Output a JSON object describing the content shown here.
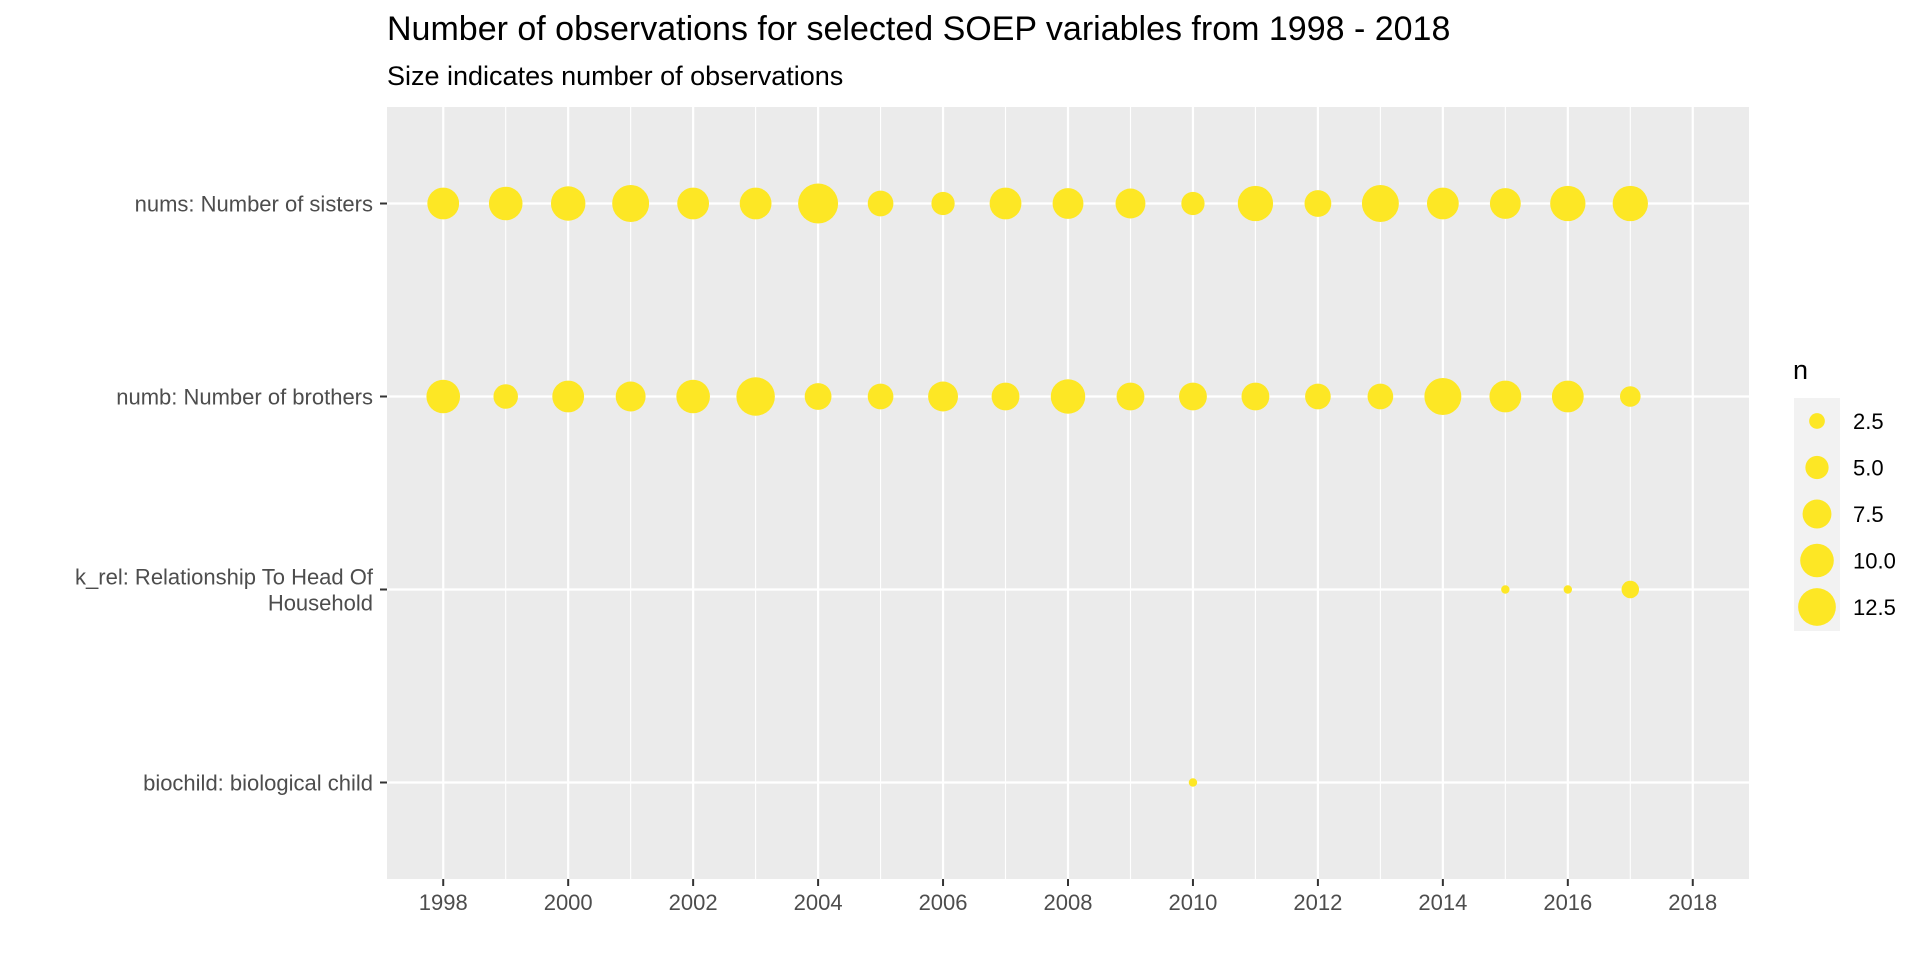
{
  "chart_data": {
    "type": "scatter",
    "title": "Number of observations for selected SOEP variables from 1998 - 2018",
    "subtitle": "Size indicates number of observations",
    "xlabel": "",
    "ylabel": "",
    "xlim": [
      1997.1,
      2018.9
    ],
    "x_ticks": [
      1998,
      2000,
      2002,
      2004,
      2006,
      2008,
      2010,
      2012,
      2014,
      2016,
      2018
    ],
    "x_tick_labels": [
      "1998",
      "2000",
      "2002",
      "2004",
      "2006",
      "2008",
      "2010",
      "2012",
      "2014",
      "2016",
      "2018"
    ],
    "categories": [
      "biochild: biological child",
      "k_rel: Relationship To Head Of Household",
      "numb: Number of brothers",
      "nums: Number of sisters"
    ],
    "category_label_lines": [
      [
        "biochild: biological child"
      ],
      [
        "k_rel: Relationship To Head Of",
        "Household"
      ],
      [
        "numb: Number of brothers"
      ],
      [
        "nums: Number of sisters"
      ]
    ],
    "point_color": "#FDE725",
    "panel_background": "#EBEBEB",
    "grid": true,
    "size_range": [
      1,
      14
    ],
    "series": [
      {
        "category": "nums: Number of sisters",
        "x": [
          1998,
          1999,
          2000,
          2001,
          2002,
          2003,
          2004,
          2005,
          2006,
          2007,
          2008,
          2009,
          2010,
          2011,
          2012,
          2013,
          2014,
          2015,
          2016,
          2017
        ],
        "n": [
          9,
          10,
          10.5,
          12,
          9,
          9,
          14,
          6,
          5,
          9,
          8.5,
          8,
          5,
          11,
          6.5,
          12,
          9,
          8.5,
          11,
          11
        ]
      },
      {
        "category": "numb: Number of brothers",
        "x": [
          1998,
          1999,
          2000,
          2001,
          2002,
          2003,
          2004,
          2005,
          2006,
          2007,
          2008,
          2009,
          2010,
          2011,
          2012,
          2013,
          2014,
          2015,
          2016,
          2017
        ],
        "n": [
          10,
          5.5,
          9,
          8,
          10,
          13,
          6.5,
          6,
          8,
          7,
          10.5,
          7,
          7,
          7,
          6,
          6,
          12,
          9,
          9,
          4
        ]
      },
      {
        "category": "k_rel: Relationship To Head Of Household",
        "x": [
          2015,
          2016,
          2017
        ],
        "n": [
          1,
          1,
          3
        ]
      },
      {
        "category": "biochild: biological child",
        "x": [
          2010
        ],
        "n": [
          1
        ]
      }
    ],
    "legend": {
      "title": "n",
      "position": "right",
      "values": [
        2.5,
        5.0,
        7.5,
        10.0,
        12.5
      ],
      "labels": [
        "2.5",
        "5.0",
        "7.5",
        "10.0",
        "12.5"
      ]
    }
  }
}
